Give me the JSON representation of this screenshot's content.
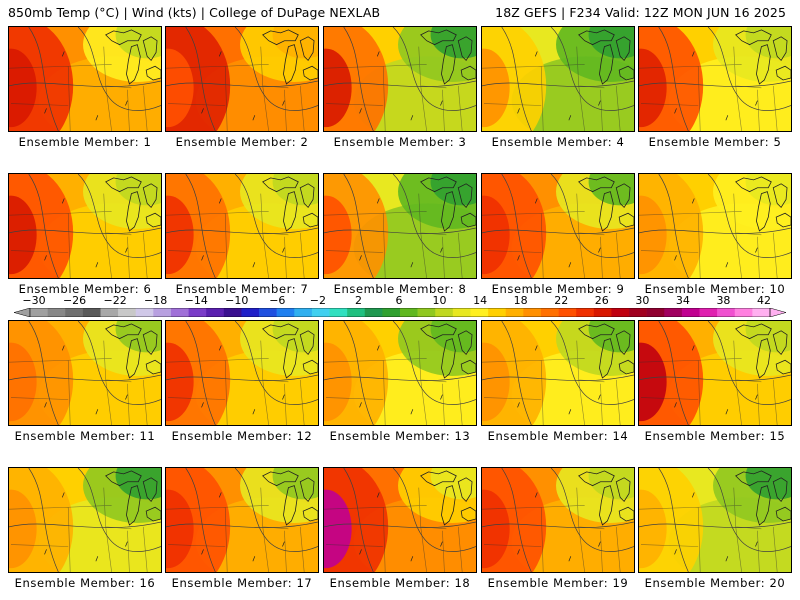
{
  "header": {
    "left": "850mb Temp (°C) | Wind (kts) | College of DuPage NEXLAB",
    "right": "18Z GEFS | F234 Valid: 12Z MON JUN 16 2025"
  },
  "colorbar": {
    "labels": [
      "−30",
      "−26",
      "−22",
      "−18",
      "−14",
      "−10",
      "−6",
      "−2",
      "2",
      "6",
      "10",
      "14",
      "18",
      "22",
      "26",
      "30",
      "34",
      "38",
      "42"
    ],
    "colors": [
      "#a0a0a0",
      "#888888",
      "#707070",
      "#5a5a5a",
      "#a8a8a8",
      "#c8c8c8",
      "#d0c8e8",
      "#b8a0e0",
      "#a070d8",
      "#7a3cc8",
      "#5a20b0",
      "#3a1090",
      "#2020c8",
      "#2050e0",
      "#2080f0",
      "#30b0f0",
      "#40d0f0",
      "#30e0c0",
      "#20c080",
      "#209850",
      "#30a030",
      "#60b820",
      "#90c820",
      "#c0d820",
      "#e8e820",
      "#fff020",
      "#ffd000",
      "#ffb000",
      "#ff9000",
      "#ff7000",
      "#ff5000",
      "#f03000",
      "#d81800",
      "#c00010",
      "#a00020",
      "#900030",
      "#a00060",
      "#c00090",
      "#e020b0",
      "#f050d0",
      "#ff80e0",
      "#ffb0f0"
    ]
  },
  "members": [
    {
      "label": "Ensemble Member: 1",
      "fields": [
        "#ff9000",
        "#ffb000",
        "#f03000",
        "#d81800",
        "#fff020",
        "#c0d820"
      ]
    },
    {
      "label": "Ensemble Member: 2",
      "fields": [
        "#ff7000",
        "#ff9000",
        "#e02000",
        "#ff5000",
        "#ffd000",
        "#ffb000"
      ]
    },
    {
      "label": "Ensemble Member: 3",
      "fields": [
        "#ffd000",
        "#c0d820",
        "#ff7000",
        "#d81800",
        "#90c820",
        "#30a030"
      ]
    },
    {
      "label": "Ensemble Member: 4",
      "fields": [
        "#e8e820",
        "#90c820",
        "#ffd000",
        "#ff9000",
        "#60b820",
        "#30a030"
      ]
    },
    {
      "label": "Ensemble Member: 5",
      "fields": [
        "#ffd000",
        "#fff020",
        "#ff5000",
        "#e02000",
        "#e8e820",
        "#c0d820"
      ]
    },
    {
      "label": "Ensemble Member: 6",
      "fields": [
        "#ffb000",
        "#ffd000",
        "#ff5000",
        "#d81800",
        "#e8e820",
        "#c0d820"
      ]
    },
    {
      "label": "Ensemble Member: 7",
      "fields": [
        "#ffb000",
        "#ffd000",
        "#ff7000",
        "#f03000",
        "#e8e820",
        "#c0d820"
      ]
    },
    {
      "label": "Ensemble Member: 8",
      "fields": [
        "#e8e820",
        "#90c820",
        "#ff9000",
        "#ff5000",
        "#60b820",
        "#30a030"
      ]
    },
    {
      "label": "Ensemble Member: 9",
      "fields": [
        "#ff9000",
        "#ffb000",
        "#ff5000",
        "#f03000",
        "#e8e820",
        "#60b820"
      ]
    },
    {
      "label": "Ensemble Member: 10",
      "fields": [
        "#ffd000",
        "#fff020",
        "#ffb000",
        "#ff9000",
        "#fff020",
        "#e8e820"
      ]
    },
    {
      "label": "Ensemble Member: 11",
      "fields": [
        "#ffb000",
        "#ffd000",
        "#ff9000",
        "#ff7000",
        "#e8e820",
        "#90c820"
      ]
    },
    {
      "label": "Ensemble Member: 12",
      "fields": [
        "#ffb000",
        "#ffd000",
        "#ff7000",
        "#f03000",
        "#e8e820",
        "#c0d820"
      ]
    },
    {
      "label": "Ensemble Member: 13",
      "fields": [
        "#ffd000",
        "#fff020",
        "#ffb000",
        "#ff9000",
        "#90c820",
        "#60b820"
      ]
    },
    {
      "label": "Ensemble Member: 14",
      "fields": [
        "#ffd000",
        "#fff020",
        "#ffb000",
        "#ff9000",
        "#c0d820",
        "#60b820"
      ]
    },
    {
      "label": "Ensemble Member: 15",
      "fields": [
        "#ffb000",
        "#ffd000",
        "#ff5000",
        "#c00010",
        "#e8e820",
        "#c0d820"
      ]
    },
    {
      "label": "Ensemble Member: 16",
      "fields": [
        "#ffd000",
        "#e8e820",
        "#ffb000",
        "#ff9000",
        "#90c820",
        "#30a030"
      ]
    },
    {
      "label": "Ensemble Member: 17",
      "fields": [
        "#ff9000",
        "#ffb000",
        "#ff5000",
        "#f03000",
        "#e8e820",
        "#90c820"
      ]
    },
    {
      "label": "Ensemble Member: 18",
      "fields": [
        "#ff7000",
        "#ff9000",
        "#f03000",
        "#c00090",
        "#ffd000",
        "#e8e820"
      ]
    },
    {
      "label": "Ensemble Member: 19",
      "fields": [
        "#ff9000",
        "#ffb000",
        "#ff5000",
        "#f03000",
        "#e8e820",
        "#c0d820"
      ]
    },
    {
      "label": "Ensemble Member: 20",
      "fields": [
        "#e8e820",
        "#c0d820",
        "#ffd000",
        "#ffb000",
        "#90c820",
        "#30a030"
      ]
    }
  ]
}
